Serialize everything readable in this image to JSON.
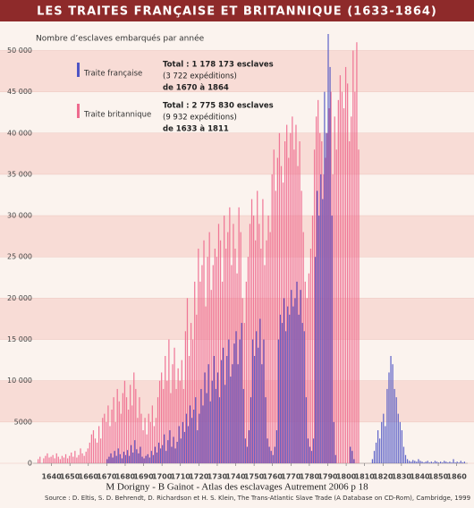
{
  "chart_data": {
    "type": "bar",
    "title": "LES TRAITES FRANÇAISE ET BRITANNIQUE (1633-1864)",
    "y_label": "Nombre d’esclaves embarqués par année",
    "caption": "M Dorigny - B Gainot - Atlas des esclavages Autrement 2006 p 18",
    "source": "Source : D. Eltis, S. D. Behrendt, D. Richardson et H. S. Klein, The Trans-Atlantic Slave Trade (A Database on CD-Rom), Cambridge, 1999",
    "annotations": [
      {
        "name": "Traite française",
        "lines": [
          "Total : 1 178 173 esclaves",
          "(3 722 expéditions)",
          "de 1670 à 1864"
        ]
      },
      {
        "name": "Traite britannique",
        "lines": [
          "Total : 2 775 830 esclaves",
          "(9 932 expéditions)",
          "de 1633 à 1811"
        ]
      }
    ],
    "xlim": [
      1630,
      1866
    ],
    "xticks": [
      1640,
      1650,
      1660,
      1670,
      1680,
      1690,
      1700,
      1710,
      1720,
      1730,
      1740,
      1750,
      1760,
      1770,
      1780,
      1790,
      1800,
      1810,
      1820,
      1830,
      1840,
      1850,
      1860
    ],
    "ylim": [
      0,
      52000
    ],
    "yticks": [
      0,
      {
        "value": 5000,
        "label": "5000"
      },
      {
        "value": 10000,
        "label": "10 000"
      },
      {
        "value": 15000,
        "label": "15 000"
      },
      {
        "value": 20000,
        "label": "20 000"
      },
      {
        "value": 25000,
        "label": "25 000"
      },
      {
        "value": 30000,
        "label": "30 000"
      },
      {
        "value": 35000,
        "label": "35 000"
      },
      {
        "value": 40000,
        "label": "40 000"
      },
      {
        "value": 45000,
        "label": "45 000"
      },
      {
        "value": 50000,
        "label": "50 000"
      }
    ],
    "x_start": 1633,
    "series": [
      {
        "name": "Traite britannique",
        "color": "#ee6a8e",
        "values": [
          500,
          800,
          0,
          600,
          900,
          1200,
          700,
          800,
          1000,
          600,
          1200,
          800,
          500,
          900,
          700,
          1100,
          600,
          900,
          1300,
          800,
          1500,
          700,
          1000,
          1800,
          1200,
          900,
          1400,
          1800,
          2500,
          3500,
          4000,
          3000,
          2500,
          4500,
          3000,
          5500,
          6000,
          5000,
          7000,
          4500,
          6500,
          8000,
          5000,
          9000,
          7500,
          6000,
          8500,
          10000,
          8000,
          6500,
          9500,
          7000,
          11000,
          9000,
          5500,
          8000,
          6000,
          4000,
          5500,
          3500,
          6000,
          5000,
          7000,
          4500,
          5500,
          8000,
          10000,
          11000,
          9000,
          13000,
          10000,
          15000,
          8500,
          12000,
          14000,
          9000,
          11500,
          10000,
          12500,
          9000,
          16000,
          20000,
          13000,
          17000,
          15000,
          22000,
          18000,
          26000,
          22000,
          24000,
          27000,
          19000,
          25000,
          28000,
          21000,
          24000,
          26000,
          25000,
          29000,
          27000,
          22000,
          30000,
          26000,
          28000,
          31000,
          24000,
          29000,
          26000,
          23000,
          31000,
          28000,
          20000,
          17000,
          22000,
          25000,
          29000,
          32000,
          30000,
          27000,
          33000,
          29000,
          26000,
          32000,
          24000,
          27000,
          30000,
          28000,
          35000,
          38000,
          33000,
          37000,
          40000,
          36000,
          34000,
          39000,
          41000,
          37000,
          40000,
          42000,
          38000,
          41000,
          36000,
          39000,
          33000,
          28000,
          22000,
          20000,
          23000,
          26000,
          30000,
          38000,
          42000,
          44000,
          40000,
          39000,
          35000,
          37000,
          40000,
          43000,
          45000,
          35000,
          42000,
          38000,
          44000,
          47000,
          45000,
          43000,
          48000,
          46000,
          39000,
          42000,
          50000,
          45000,
          51000,
          38000,
          0,
          0,
          0,
          0,
          null,
          null,
          null,
          null,
          null,
          null,
          null,
          null,
          null,
          null,
          null,
          null,
          null,
          null,
          null,
          null,
          null,
          null,
          null,
          null,
          null,
          null,
          null,
          null,
          null,
          null,
          null,
          null,
          null,
          null,
          null,
          null,
          null,
          null,
          null,
          null,
          null,
          null,
          null,
          null,
          null,
          null,
          null,
          null,
          null,
          null,
          null,
          null,
          null,
          null,
          null,
          null,
          null
        ]
      },
      {
        "name": "Traite française",
        "color": "#4f55c4",
        "values": [
          null,
          null,
          null,
          null,
          null,
          null,
          null,
          null,
          null,
          null,
          null,
          null,
          null,
          null,
          null,
          null,
          null,
          null,
          null,
          null,
          null,
          null,
          null,
          null,
          null,
          null,
          null,
          null,
          null,
          null,
          null,
          null,
          null,
          null,
          null,
          null,
          null,
          500,
          800,
          1200,
          700,
          1500,
          900,
          1800,
          1100,
          600,
          1400,
          1000,
          1600,
          900,
          2200,
          1300,
          2800,
          1700,
          1200,
          2000,
          800,
          600,
          900,
          1100,
          700,
          1500,
          1000,
          2000,
          1300,
          2500,
          1800,
          2200,
          3500,
          1500,
          2800,
          4000,
          2000,
          3200,
          1800,
          2600,
          4500,
          3000,
          5000,
          3800,
          6000,
          4500,
          7000,
          5500,
          6500,
          8000,
          4000,
          6000,
          9000,
          7000,
          11000,
          8500,
          12000,
          7500,
          10000,
          13000,
          9000,
          11000,
          8000,
          12500,
          14000,
          9500,
          13000,
          15000,
          10500,
          12000,
          14500,
          16000,
          12000,
          15000,
          17000,
          9000,
          3000,
          2000,
          4000,
          8000,
          15000,
          13000,
          16000,
          14000,
          17500,
          12000,
          15000,
          8000,
          3000,
          2000,
          1500,
          1000,
          2000,
          4000,
          15000,
          18000,
          17000,
          20000,
          16000,
          19000,
          18000,
          21000,
          19000,
          20000,
          22000,
          18000,
          21000,
          17000,
          16000,
          8000,
          3000,
          2000,
          1500,
          3000,
          25000,
          33000,
          30000,
          35000,
          32000,
          45000,
          40000,
          52000,
          48000,
          30000,
          5000,
          1000,
          0,
          0,
          0,
          0,
          0,
          0,
          0,
          2000,
          1500,
          500,
          0,
          0,
          0,
          0,
          0,
          0,
          0,
          0,
          0,
          500,
          1500,
          2500,
          4000,
          3000,
          5000,
          6000,
          4500,
          9000,
          11000,
          13000,
          12000,
          9000,
          8000,
          6000,
          5000,
          4000,
          2000,
          1000,
          500,
          300,
          200,
          400,
          300,
          200,
          500,
          300,
          200,
          100,
          200,
          300,
          100,
          200,
          100,
          300,
          200,
          100,
          200,
          100,
          300,
          200,
          100,
          200,
          100,
          500,
          100,
          200,
          100,
          300,
          100,
          200
        ]
      }
    ],
    "grid": true
  }
}
